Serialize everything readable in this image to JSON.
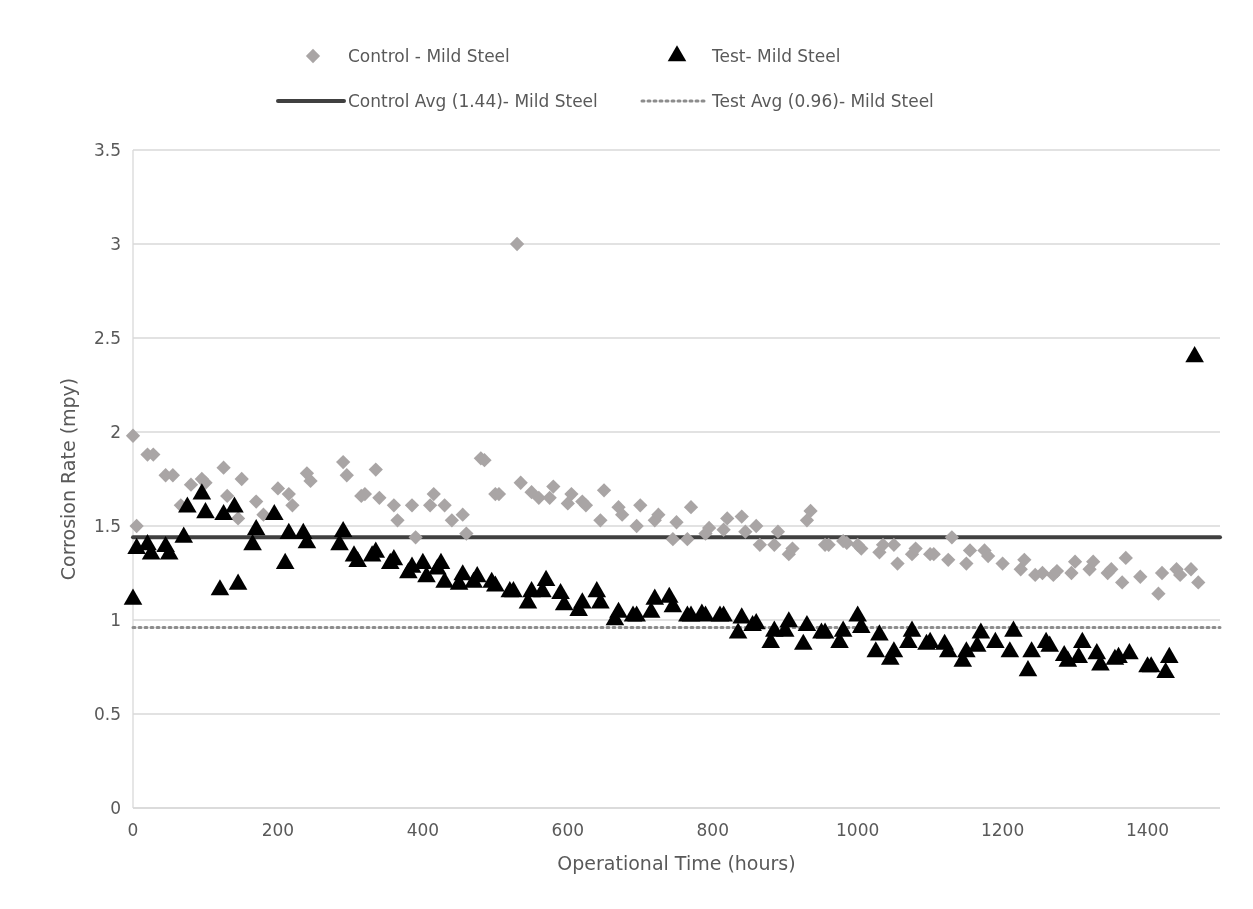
{
  "chart_data": {
    "type": "scatter",
    "xlabel": "Operational Time (hours)",
    "ylabel": "Corrosion Rate (mpy)",
    "xlim": [
      0,
      1500
    ],
    "xticks": [
      0,
      200,
      400,
      600,
      800,
      1000,
      1200,
      1400
    ],
    "ylim": [
      0,
      3.5
    ],
    "yticks": [
      0,
      0.5,
      1,
      1.5,
      2,
      2.5,
      3,
      3.5
    ],
    "grid": "y",
    "legend": "top",
    "series": [
      {
        "name": "Control - Mild Steel",
        "color": "#a9a5a5",
        "marker": "diamond",
        "x": [
          0,
          5,
          20,
          28,
          45,
          55,
          66,
          80,
          95,
          100,
          125,
          130,
          145,
          150,
          170,
          180,
          200,
          215,
          220,
          240,
          245,
          290,
          295,
          315,
          320,
          335,
          340,
          360,
          365,
          385,
          390,
          410,
          415,
          430,
          440,
          455,
          460,
          480,
          485,
          500,
          505,
          530,
          535,
          550,
          560,
          575,
          580,
          600,
          605,
          620,
          625,
          645,
          650,
          670,
          675,
          695,
          700,
          720,
          725,
          745,
          750,
          765,
          770,
          790,
          795,
          815,
          820,
          840,
          845,
          860,
          865,
          885,
          890,
          905,
          910,
          930,
          935,
          955,
          960,
          980,
          985,
          1000,
          1005,
          1030,
          1035,
          1050,
          1055,
          1075,
          1080,
          1100,
          1105,
          1125,
          1130,
          1150,
          1155,
          1175,
          1180,
          1200,
          1225,
          1230,
          1245,
          1255,
          1270,
          1275,
          1295,
          1300,
          1320,
          1325,
          1345,
          1350,
          1365,
          1370,
          1390,
          1415,
          1420,
          1440,
          1445,
          1460,
          1470
        ],
        "values": [
          1.98,
          1.5,
          1.88,
          1.88,
          1.77,
          1.77,
          1.61,
          1.72,
          1.75,
          1.73,
          1.81,
          1.66,
          1.54,
          1.75,
          1.63,
          1.56,
          1.7,
          1.67,
          1.61,
          1.78,
          1.74,
          1.84,
          1.77,
          1.66,
          1.67,
          1.8,
          1.65,
          1.61,
          1.53,
          1.61,
          1.44,
          1.61,
          1.67,
          1.61,
          1.53,
          1.56,
          1.46,
          1.86,
          1.85,
          1.67,
          1.67,
          3.0,
          1.73,
          1.68,
          1.65,
          1.65,
          1.71,
          1.62,
          1.67,
          1.63,
          1.61,
          1.53,
          1.69,
          1.6,
          1.56,
          1.5,
          1.61,
          1.53,
          1.56,
          1.43,
          1.52,
          1.43,
          1.6,
          1.46,
          1.49,
          1.48,
          1.54,
          1.55,
          1.47,
          1.5,
          1.4,
          1.4,
          1.47,
          1.35,
          1.38,
          1.53,
          1.58,
          1.4,
          1.4,
          1.42,
          1.41,
          1.4,
          1.38,
          1.36,
          1.4,
          1.4,
          1.3,
          1.35,
          1.38,
          1.35,
          1.35,
          1.32,
          1.44,
          1.3,
          1.37,
          1.37,
          1.34,
          1.3,
          1.27,
          1.32,
          1.24,
          1.25,
          1.24,
          1.26,
          1.25,
          1.31,
          1.27,
          1.31,
          1.25,
          1.27,
          1.2,
          1.33,
          1.23,
          1.14,
          1.25,
          1.27,
          1.24,
          1.27,
          1.2
        ]
      },
      {
        "name": "Test- Mild Steel",
        "color": "#000000",
        "marker": "triangle",
        "x": [
          0,
          5,
          20,
          25,
          45,
          50,
          70,
          75,
          95,
          100,
          120,
          125,
          140,
          145,
          165,
          170,
          195,
          210,
          215,
          235,
          240,
          285,
          290,
          305,
          310,
          330,
          335,
          355,
          360,
          380,
          385,
          400,
          405,
          420,
          425,
          430,
          450,
          455,
          470,
          475,
          495,
          500,
          520,
          525,
          545,
          550,
          565,
          570,
          590,
          595,
          615,
          620,
          640,
          645,
          665,
          670,
          690,
          695,
          715,
          720,
          740,
          745,
          765,
          770,
          785,
          790,
          810,
          815,
          835,
          840,
          855,
          860,
          880,
          885,
          900,
          905,
          925,
          930,
          950,
          955,
          975,
          980,
          1000,
          1005,
          1025,
          1030,
          1045,
          1050,
          1070,
          1075,
          1095,
          1100,
          1120,
          1125,
          1145,
          1150,
          1165,
          1170,
          1190,
          1210,
          1215,
          1235,
          1240,
          1260,
          1265,
          1285,
          1290,
          1305,
          1310,
          1330,
          1335,
          1355,
          1360,
          1375,
          1400,
          1405,
          1425,
          1430,
          1465
        ],
        "values": [
          1.11,
          1.38,
          1.4,
          1.35,
          1.39,
          1.35,
          1.44,
          1.6,
          1.67,
          1.57,
          1.16,
          1.56,
          1.6,
          1.19,
          1.4,
          1.48,
          1.56,
          1.3,
          1.46,
          1.46,
          1.41,
          1.4,
          1.47,
          1.34,
          1.31,
          1.34,
          1.36,
          1.3,
          1.32,
          1.25,
          1.28,
          1.3,
          1.23,
          1.27,
          1.3,
          1.2,
          1.19,
          1.24,
          1.2,
          1.23,
          1.2,
          1.18,
          1.15,
          1.15,
          1.09,
          1.15,
          1.15,
          1.21,
          1.14,
          1.08,
          1.05,
          1.09,
          1.15,
          1.09,
          1.0,
          1.04,
          1.02,
          1.02,
          1.04,
          1.11,
          1.12,
          1.07,
          1.02,
          1.02,
          1.03,
          1.02,
          1.02,
          1.02,
          0.93,
          1.01,
          0.97,
          0.98,
          0.88,
          0.94,
          0.94,
          0.99,
          0.87,
          0.97,
          0.93,
          0.93,
          0.88,
          0.94,
          1.02,
          0.96,
          0.83,
          0.92,
          0.79,
          0.83,
          0.88,
          0.94,
          0.87,
          0.88,
          0.87,
          0.83,
          0.78,
          0.83,
          0.86,
          0.93,
          0.88,
          0.83,
          0.94,
          0.73,
          0.83,
          0.88,
          0.86,
          0.81,
          0.78,
          0.8,
          0.88,
          0.82,
          0.76,
          0.79,
          0.8,
          0.82,
          0.75,
          0.75,
          0.72,
          0.8,
          2.4
        ]
      }
    ],
    "ref_lines": [
      {
        "axis": "y",
        "value": 1.44,
        "label": "Control Avg (1.44)- Mild Steel",
        "color": "#404040",
        "line_style": "solid"
      },
      {
        "axis": "y",
        "value": 0.96,
        "label": "Test Avg (0.96)- Mild Steel",
        "color": "#8c8c8c",
        "line_style": "dotted"
      }
    ]
  }
}
